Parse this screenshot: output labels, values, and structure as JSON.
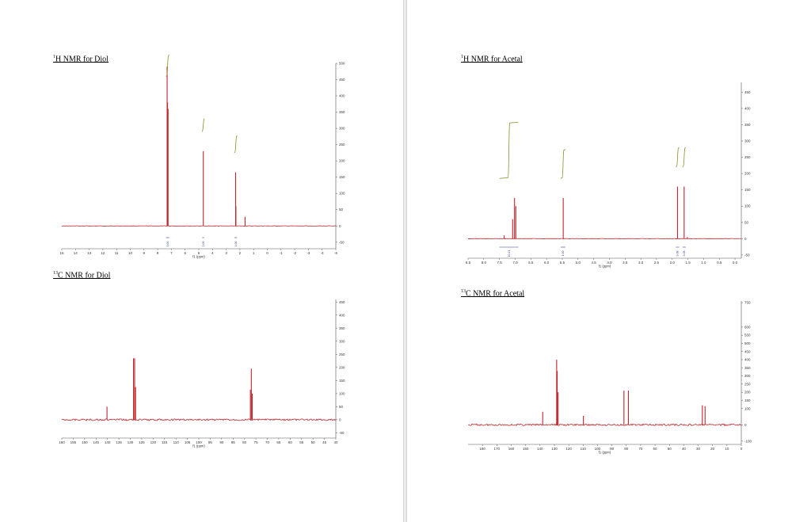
{
  "captions": [
    {
      "sup": "1",
      "text": "H NMR for Diol"
    },
    {
      "sup": "13",
      "text": "C NMR for Diol"
    },
    {
      "sup": "1",
      "text": "H NMR for Acetal"
    },
    {
      "sup": "13",
      "text": "C NMR for Acetal"
    }
  ],
  "colors": {
    "spectrum": "#c0262c",
    "integral": "#8c8c2a",
    "integral_label": "#2c3f8f",
    "axis": "#555555"
  },
  "chart_data": [
    {
      "type": "line",
      "title": "H NMR for Diol",
      "xlabel": "f1 (ppm)",
      "ylabel": "",
      "xlim": [
        15,
        -5
      ],
      "ylim": [
        -70,
        500
      ],
      "x_ticks": [
        "15",
        "14",
        "13",
        "12",
        "11",
        "10",
        "9",
        "8",
        "7",
        "6",
        "5",
        "4",
        "3",
        "2",
        "1",
        "0",
        "-1",
        "-2",
        "-3",
        "-4",
        "-5"
      ],
      "x_tick_values": [
        15,
        14,
        13,
        12,
        11,
        10,
        9,
        8,
        7,
        6,
        5,
        4,
        3,
        2,
        1,
        0,
        -1,
        -2,
        -3,
        -4,
        -5
      ],
      "y_ticks": [
        "-50",
        "0",
        "50",
        "100",
        "150",
        "200",
        "250",
        "300",
        "350",
        "400",
        "450",
        "500"
      ],
      "y_tick_values": [
        -50,
        0,
        50,
        100,
        150,
        200,
        250,
        300,
        350,
        400,
        450,
        500
      ],
      "peaks": [
        {
          "ppm": 7.31,
          "height": 490
        },
        {
          "ppm": 7.28,
          "height": 380
        },
        {
          "ppm": 7.24,
          "height": 360
        },
        {
          "ppm": 4.67,
          "height": 230
        },
        {
          "ppm": 2.31,
          "height": 165
        },
        {
          "ppm": 2.29,
          "height": 60
        },
        {
          "ppm": 1.62,
          "height": 28
        }
      ],
      "integrals": [
        {
          "from": 7.4,
          "to": 7.15,
          "value": "5.00"
        },
        {
          "from": 4.75,
          "to": 4.6,
          "value": "2.00"
        },
        {
          "from": 2.4,
          "to": 2.2,
          "value": "1.00"
        }
      ]
    },
    {
      "type": "line",
      "title": "C NMR for Diol",
      "xlabel": "f1 (ppm)",
      "ylabel": "",
      "xlim": [
        160,
        40
      ],
      "ylim": [
        -70,
        460
      ],
      "x_ticks": [
        "160",
        "155",
        "150",
        "145",
        "140",
        "135",
        "130",
        "125",
        "120",
        "115",
        "110",
        "105",
        "100",
        "95",
        "90",
        "85",
        "80",
        "75",
        "70",
        "65",
        "60",
        "55",
        "50",
        "45",
        "40"
      ],
      "x_tick_values": [
        160,
        155,
        150,
        145,
        140,
        135,
        130,
        125,
        120,
        115,
        110,
        105,
        100,
        95,
        90,
        85,
        80,
        75,
        70,
        65,
        60,
        55,
        50,
        45,
        40
      ],
      "y_ticks": [
        "-50",
        "0",
        "50",
        "100",
        "150",
        "200",
        "250",
        "300",
        "350",
        "400",
        "450"
      ],
      "y_tick_values": [
        -50,
        0,
        50,
        100,
        150,
        200,
        250,
        300,
        350,
        400,
        450
      ],
      "peaks": [
        {
          "ppm": 140.2,
          "height": 50
        },
        {
          "ppm": 128.6,
          "height": 235
        },
        {
          "ppm": 128.1,
          "height": 235
        },
        {
          "ppm": 127.7,
          "height": 125
        },
        {
          "ppm": 77.4,
          "height": 115
        },
        {
          "ppm": 77.0,
          "height": 195
        },
        {
          "ppm": 76.6,
          "height": 100
        }
      ]
    },
    {
      "type": "line",
      "title": "H NMR for Acetal",
      "xlabel": "f1 (ppm)",
      "ylabel": "",
      "xlim": [
        8.5,
        -0.2
      ],
      "ylim": [
        -60,
        480
      ],
      "x_ticks": [
        "8.5",
        "8.0",
        "7.5",
        "7.0",
        "6.5",
        "6.0",
        "5.5",
        "5.0",
        "4.5",
        "4.0",
        "3.5",
        "3.0",
        "2.5",
        "2.0",
        "1.5",
        "1.0",
        "0.5",
        "0.0"
      ],
      "x_tick_values": [
        8.5,
        8.0,
        7.5,
        7.0,
        6.5,
        6.0,
        5.5,
        5.0,
        4.5,
        4.0,
        3.5,
        3.0,
        2.5,
        2.0,
        1.5,
        1.0,
        0.5,
        0.0
      ],
      "y_ticks": [
        "-50",
        "0",
        "50",
        "100",
        "150",
        "200",
        "250",
        "300",
        "350",
        "400",
        "450"
      ],
      "y_tick_values": [
        -50,
        0,
        50,
        100,
        150,
        200,
        250,
        300,
        350,
        400,
        450
      ],
      "peaks": [
        {
          "ppm": 7.35,
          "height": 10
        },
        {
          "ppm": 7.08,
          "height": 60
        },
        {
          "ppm": 7.02,
          "height": 125
        },
        {
          "ppm": 6.98,
          "height": 100
        },
        {
          "ppm": 5.47,
          "height": 125
        },
        {
          "ppm": 1.83,
          "height": 160
        },
        {
          "ppm": 1.62,
          "height": 160
        },
        {
          "ppm": 1.52,
          "height": 5
        }
      ],
      "integrals": [
        {
          "from": 7.5,
          "to": 6.9,
          "value": "10.21"
        },
        {
          "from": 5.55,
          "to": 5.4,
          "value": "1.00"
        },
        {
          "from": 1.88,
          "to": 1.78,
          "value": "3.08"
        },
        {
          "from": 1.67,
          "to": 1.57,
          "value": "3.08"
        }
      ]
    },
    {
      "type": "line",
      "title": "C NMR for Acetal",
      "xlabel": "f1 (ppm)",
      "ylabel": "",
      "xlim": [
        190,
        0
      ],
      "ylim": [
        -120,
        760
      ],
      "x_ticks": [
        "180",
        "170",
        "160",
        "150",
        "140",
        "130",
        "120",
        "110",
        "100",
        "90",
        "80",
        "70",
        "60",
        "50",
        "40",
        "30",
        "20",
        "10",
        "0"
      ],
      "x_tick_values": [
        180,
        170,
        160,
        150,
        140,
        130,
        120,
        110,
        100,
        90,
        80,
        70,
        60,
        50,
        40,
        30,
        20,
        10,
        0
      ],
      "y_ticks": [
        "-100",
        "0",
        "100",
        "150",
        "200",
        "250",
        "300",
        "350",
        "400",
        "450",
        "500",
        "550",
        "600",
        "750"
      ],
      "y_tick_values": [
        -100,
        0,
        100,
        150,
        200,
        250,
        300,
        350,
        400,
        450,
        500,
        550,
        600,
        750
      ],
      "peaks": [
        {
          "ppm": 138.1,
          "height": 80
        },
        {
          "ppm": 128.4,
          "height": 400
        },
        {
          "ppm": 128.0,
          "height": 330
        },
        {
          "ppm": 127.4,
          "height": 200
        },
        {
          "ppm": 109.8,
          "height": 55
        },
        {
          "ppm": 81.6,
          "height": 210
        },
        {
          "ppm": 78.5,
          "height": 210
        },
        {
          "ppm": 27.1,
          "height": 120
        },
        {
          "ppm": 25.2,
          "height": 115
        }
      ]
    }
  ]
}
